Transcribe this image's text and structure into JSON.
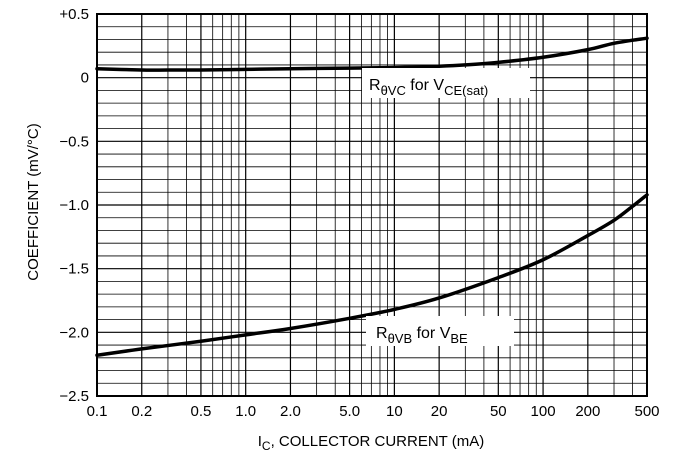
{
  "chart_data": {
    "type": "line",
    "title": "",
    "xscale": "log",
    "xlim": [
      0.1,
      500
    ],
    "ylim": [
      -2.5,
      0.5
    ],
    "grid": true,
    "xticks": [
      {
        "value": 0.1,
        "label": "0.1"
      },
      {
        "value": 0.2,
        "label": "0.2"
      },
      {
        "value": 0.5,
        "label": "0.5"
      },
      {
        "value": 1.0,
        "label": "1.0"
      },
      {
        "value": 2.0,
        "label": "2.0"
      },
      {
        "value": 5.0,
        "label": "5.0"
      },
      {
        "value": 10,
        "label": "10"
      },
      {
        "value": 20,
        "label": "20"
      },
      {
        "value": 50,
        "label": "50"
      },
      {
        "value": 100,
        "label": "100"
      },
      {
        "value": 200,
        "label": "200"
      },
      {
        "value": 500,
        "label": "500"
      }
    ],
    "yticks": [
      {
        "value": 0.5,
        "label": "+0.5"
      },
      {
        "value": 0,
        "label": "0"
      },
      {
        "value": -0.5,
        "label": "−0.5"
      },
      {
        "value": -1.0,
        "label": "−1.0"
      },
      {
        "value": -1.5,
        "label": "−1.5"
      },
      {
        "value": -2.0,
        "label": "−2.0"
      },
      {
        "value": -2.5,
        "label": "−2.5"
      }
    ],
    "xlabel": {
      "main": "I",
      "sub": "C",
      "rest": ", COLLECTOR CURRENT (mA)"
    },
    "ylabel": "COEFFICIENT (mV/°C)",
    "series": [
      {
        "label": {
          "r": "R",
          "theta": "θ",
          "sub1": "VC",
          "mid": " for V",
          "sub2": "CE(sat)"
        },
        "x": [
          0.1,
          0.2,
          0.3,
          0.5,
          1,
          2,
          5,
          10,
          20,
          30,
          50,
          100,
          200,
          300,
          500
        ],
        "y": [
          0.07,
          0.06,
          0.06,
          0.06,
          0.065,
          0.07,
          0.075,
          0.08,
          0.09,
          0.1,
          0.12,
          0.16,
          0.22,
          0.27,
          0.31
        ]
      },
      {
        "label": {
          "r": "R",
          "theta": "θ",
          "sub1": "VB",
          "mid": " for V",
          "sub2": "BE"
        },
        "x": [
          0.1,
          0.2,
          0.5,
          1,
          2,
          5,
          10,
          20,
          50,
          100,
          200,
          300,
          400,
          500
        ],
        "y": [
          -2.18,
          -2.13,
          -2.07,
          -2.02,
          -1.97,
          -1.89,
          -1.82,
          -1.73,
          -1.57,
          -1.43,
          -1.24,
          -1.12,
          -1.01,
          -0.92
        ]
      }
    ]
  }
}
